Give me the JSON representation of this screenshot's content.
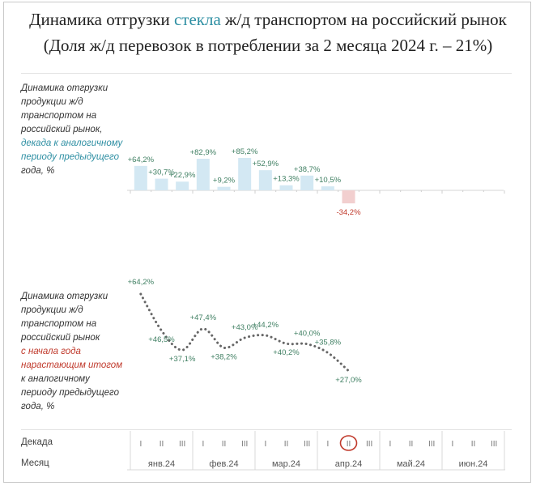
{
  "title": {
    "line1_before": "Динамика отгрузки ",
    "line1_accent": "стекла",
    "line1_after": " ж/д транспортом на российский рынок",
    "line2": "(Доля ж/д перевозок в потреблении за 2 месяца 2024 г. – 21%)"
  },
  "chart_data": [
    {
      "type": "bar",
      "description_lines": [
        "Динамика отгрузки",
        "продукции ж/д",
        "транспортом на",
        "российский рынок,"
      ],
      "description_accent_lines": [
        "декада к аналогичному",
        "периоду предыдущего"
      ],
      "description_tail": "года, %",
      "categories": [
        "янв.24 I",
        "янв.24 II",
        "янв.24 III",
        "фев.24 I",
        "фев.24 II",
        "фев.24 III",
        "мар.24 I",
        "мар.24 II",
        "мар.24 III",
        "апр.24 I",
        "апр.24 II"
      ],
      "values": [
        64.2,
        30.7,
        22.9,
        82.9,
        9.2,
        85.2,
        52.9,
        13.3,
        38.7,
        10.5,
        -34.2
      ],
      "value_labels": [
        "+64,2%",
        "+30,7%",
        "+22,9%",
        "+82,9%",
        "+9,2%",
        "+85,2%",
        "+52,9%",
        "+13,3%",
        "+38,7%",
        "+10,5%",
        "-34,2%"
      ],
      "colors": {
        "positive": "#d3e8f3",
        "negative": "#f2cfcf",
        "positive_label": "#3f7f62",
        "negative_label": "#c0392b"
      }
    },
    {
      "type": "line",
      "description_lines": [
        "Динамика отгрузки",
        "продукции ж/д",
        "транспортом на",
        "российский рынок"
      ],
      "description_accent_lines": [
        "с начала года",
        "нарастающим итогом"
      ],
      "description_tail_lines": [
        "к аналогичному",
        "периоду предыдущего",
        "года, %"
      ],
      "categories": [
        "янв.24 I",
        "янв.24 II",
        "янв.24 III",
        "фев.24 I",
        "фев.24 II",
        "фев.24 III",
        "мар.24 I",
        "мар.24 II",
        "мар.24 III",
        "апр.24 I",
        "апр.24 II"
      ],
      "values": [
        64.2,
        46.5,
        37.1,
        47.4,
        38.2,
        43.0,
        44.2,
        40.2,
        40.0,
        35.8,
        27.0
      ],
      "value_labels": [
        "+64,2%",
        "+46,5%",
        "+37,1%",
        "+47,4%",
        "+38,2%",
        "+43,0%",
        "+44,2%",
        "+40,2%",
        "+40,0%",
        "+35,8%",
        "+27,0%"
      ],
      "colors": {
        "line": "#666666",
        "label": "#3f7f62"
      }
    }
  ],
  "axis": {
    "decade_label": "Декада",
    "month_label": "Месяц",
    "decades": [
      "I",
      "II",
      "III"
    ],
    "months": [
      "янв.24",
      "фев.24",
      "мар.24",
      "апр.24",
      "май.24",
      "июн.24"
    ],
    "highlighted_decade": "апр.24 II",
    "highlight_color": "#c0392b"
  }
}
